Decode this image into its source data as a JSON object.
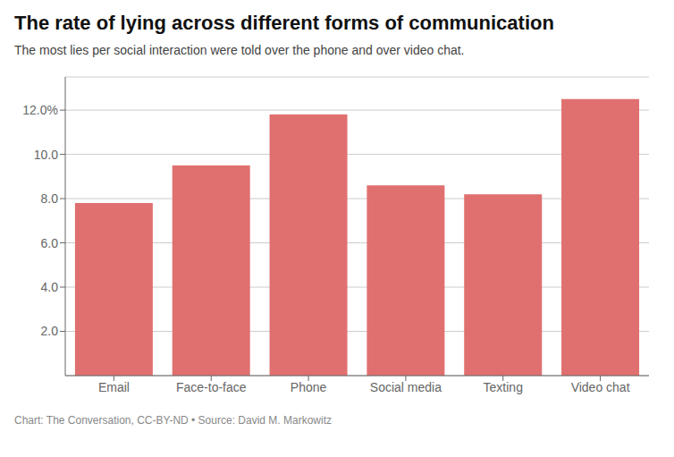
{
  "chart_data": {
    "type": "bar",
    "title": "The rate of lying across different forms of communication",
    "subtitle": "The most lies per social interaction were told over the phone and over video chat.",
    "footer": "Chart: The Conversation, CC-BY-ND • Source: David M. Markowitz",
    "categories": [
      "Email",
      "Face-to-face",
      "Phone",
      "Social media",
      "Texting",
      "Video chat"
    ],
    "values": [
      7.8,
      9.5,
      11.8,
      8.6,
      8.2,
      12.5
    ],
    "color": "#E07070",
    "ylim": [
      0,
      13.5
    ],
    "yticks": [
      {
        "value": 2.0,
        "label": "2.0"
      },
      {
        "value": 4.0,
        "label": "4.0"
      },
      {
        "value": 6.0,
        "label": "6.0"
      },
      {
        "value": 8.0,
        "label": "8.0"
      },
      {
        "value": 10.0,
        "label": "10.0"
      },
      {
        "value": 12.0,
        "label": "12.0%"
      }
    ],
    "grid": true
  }
}
